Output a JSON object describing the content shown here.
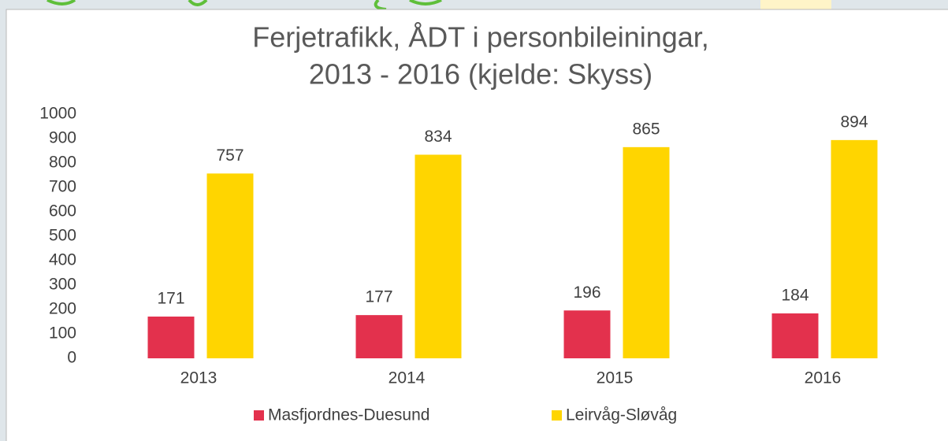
{
  "chart_data": {
    "type": "bar",
    "title": [
      "Ferjetrafikk, ÅDT i personbileiningar,",
      "2013 - 2016  (kjelde: Skyss)"
    ],
    "categories": [
      "2013",
      "2014",
      "2015",
      "2016"
    ],
    "series": [
      {
        "name": "Masfjordnes-Duesund",
        "color": "#e3314d",
        "values": [
          171,
          177,
          196,
          184
        ]
      },
      {
        "name": "Leirvåg-Sløvåg",
        "color": "#ffd500",
        "values": [
          757,
          834,
          865,
          894
        ]
      }
    ],
    "ylim": [
      0,
      1000
    ],
    "yticks": [
      0,
      100,
      200,
      300,
      400,
      500,
      600,
      700,
      800,
      900,
      1000
    ],
    "grid": false,
    "legend": "bottom"
  }
}
